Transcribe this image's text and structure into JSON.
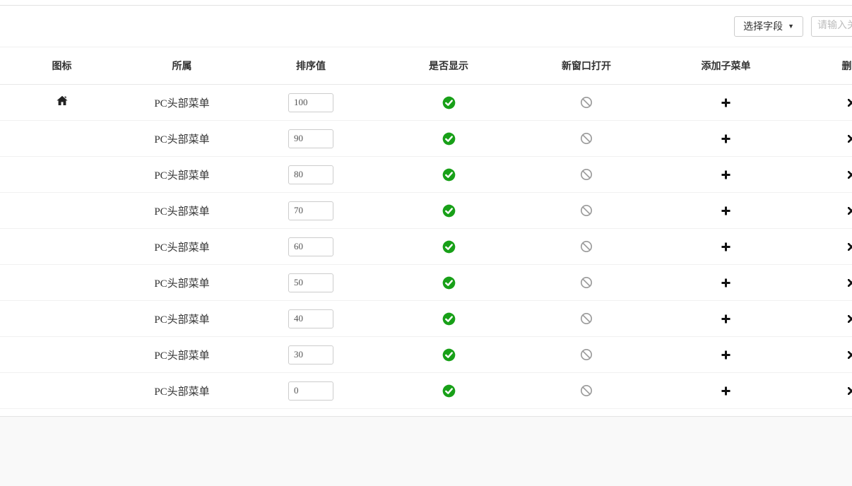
{
  "toolbar": {
    "select_field_button": "选择字段",
    "search_placeholder": "请输入关"
  },
  "table": {
    "columns": [
      "图标",
      "所属",
      "排序值",
      "是否显示",
      "新窗口打开",
      "添加子菜单",
      "删除"
    ],
    "rows": [
      {
        "icon": "home",
        "group": "PC头部菜单",
        "sort_value": "100",
        "visible": "on",
        "new_window": "off"
      },
      {
        "icon": "",
        "group": "PC头部菜单",
        "sort_value": "90",
        "visible": "on",
        "new_window": "off"
      },
      {
        "icon": "",
        "group": "PC头部菜单",
        "sort_value": "80",
        "visible": "on",
        "new_window": "off"
      },
      {
        "icon": "",
        "group": "PC头部菜单",
        "sort_value": "70",
        "visible": "on",
        "new_window": "off"
      },
      {
        "icon": "",
        "group": "PC头部菜单",
        "sort_value": "60",
        "visible": "on",
        "new_window": "off"
      },
      {
        "icon": "",
        "group": "PC头部菜单",
        "sort_value": "50",
        "visible": "on",
        "new_window": "off"
      },
      {
        "icon": "",
        "group": "PC头部菜单",
        "sort_value": "40",
        "visible": "on",
        "new_window": "off"
      },
      {
        "icon": "",
        "group": "PC头部菜单",
        "sort_value": "30",
        "visible": "on",
        "new_window": "off"
      },
      {
        "icon": "",
        "group": "PC头部菜单",
        "sort_value": "0",
        "visible": "on",
        "new_window": "off"
      }
    ]
  },
  "colors": {
    "check_green": "#18a018",
    "ban_gray": "#999999",
    "action_black": "#111111"
  }
}
